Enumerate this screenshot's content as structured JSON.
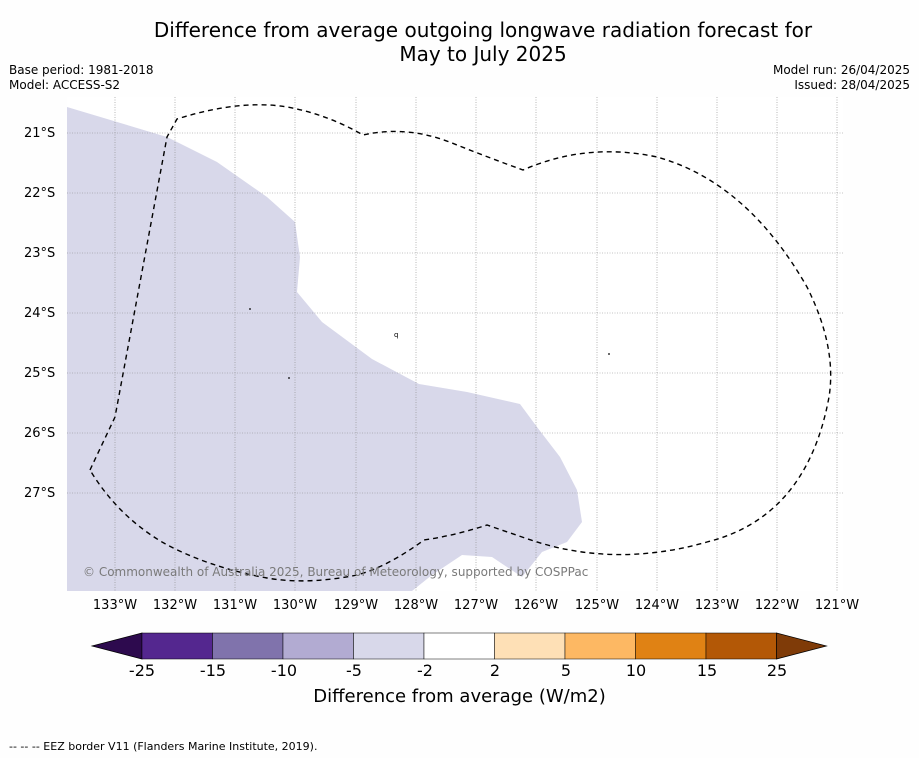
{
  "title_line1": "Difference from average outgoing longwave radiation forecast for",
  "title_line2": "May to July 2025",
  "meta_left": [
    "Base period: 1981-2018",
    "Model: ACCESS-S2"
  ],
  "meta_right": [
    "Model run: 26/04/2025",
    "Issued: 28/04/2025"
  ],
  "map": {
    "lat_labels": [
      "21°S",
      "22°S",
      "23°S",
      "24°S",
      "25°S",
      "26°S",
      "27°S"
    ],
    "lon_labels": [
      "133°W",
      "132°W",
      "131°W",
      "130°W",
      "129°W",
      "128°W",
      "127°W",
      "126°W",
      "125°W",
      "124°W",
      "123°W",
      "122°W",
      "121°W"
    ],
    "copyright": "© Commonwealth of Australia 2025, Bureau of Meteorology, supported by COSPPac",
    "shaded_category": "-5 to -2",
    "border_style": "dashed"
  },
  "colorbar": {
    "ticks": [
      "-25",
      "-15",
      "-10",
      "-5",
      "-2",
      "2",
      "5",
      "10",
      "15",
      "25"
    ],
    "colors": [
      "#2d0a4e",
      "#54278f",
      "#8073ac",
      "#b2abd2",
      "#d8d8ea",
      "#ffffff",
      "#fee0b6",
      "#fdb863",
      "#e08214",
      "#b35806",
      "#7f3b08"
    ],
    "label": "Difference from average (W/m2)"
  },
  "footer": "--  --  -- EEZ border V11 (Flanders Marine Institute, 2019)."
}
